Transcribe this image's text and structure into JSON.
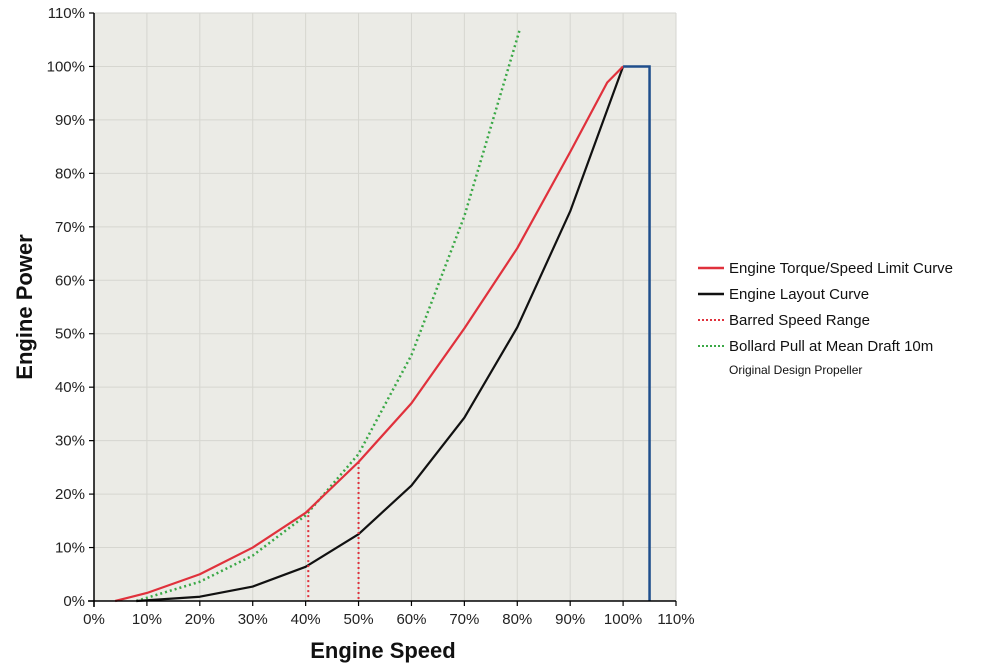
{
  "chart_data": {
    "type": "line",
    "xlabel": "Engine Speed",
    "ylabel": "Engine Power",
    "xlim": [
      0,
      110
    ],
    "ylim": [
      0,
      110
    ],
    "x_ticks": [
      "0%",
      "10%",
      "20%",
      "30%",
      "40%",
      "50%",
      "60%",
      "70%",
      "80%",
      "90%",
      "100%",
      "110%"
    ],
    "y_ticks": [
      "0%",
      "10%",
      "20%",
      "30%",
      "40%",
      "50%",
      "60%",
      "70%",
      "80%",
      "90%",
      "100%",
      "110%"
    ],
    "grid": true,
    "legend_position": "right",
    "colors": {
      "torque_limit": "#e0313c",
      "layout": "#111111",
      "barred": "#e0313c",
      "bollard": "#3aa846",
      "overspeed": "#1f4e8c",
      "plot_bg": "#ebebe6",
      "grid": "#d6d6d0"
    },
    "series": [
      {
        "name": "Engine Torque/Speed Limit Curve",
        "x": [
          4,
          10,
          20,
          30,
          40,
          50,
          60,
          70,
          80,
          90,
          97,
          100
        ],
        "y": [
          0,
          1.5,
          5,
          10,
          16.5,
          26,
          37,
          51,
          66,
          84,
          97,
          100
        ]
      },
      {
        "name": "Engine Layout Curve",
        "x": [
          8,
          20,
          30,
          40,
          50,
          60,
          70,
          80,
          90,
          100
        ],
        "y": [
          0,
          0.8,
          2.7,
          6.4,
          12.5,
          21.6,
          34.3,
          51.2,
          72.9,
          100
        ]
      },
      {
        "name": "Barred Speed Range",
        "x": [
          40.5,
          50
        ],
        "y": [
          17,
          26
        ]
      },
      {
        "name": "Bollard Pull at Mean Draft 10m",
        "x": [
          8,
          20,
          30,
          40,
          50,
          60,
          70,
          80.5
        ],
        "y": [
          0,
          3.6,
          8.5,
          16,
          27.5,
          46,
          72,
          107
        ]
      },
      {
        "x": [
          100,
          105,
          105
        ],
        "y": [
          100,
          100,
          0
        ]
      }
    ],
    "legend": [
      {
        "label": "Engine Torque/Speed Limit Curve",
        "style": "solid",
        "color_key": "torque_limit"
      },
      {
        "label": "Engine Layout Curve",
        "style": "solid",
        "color_key": "layout"
      },
      {
        "label": "Barred Speed Range",
        "style": "dotted",
        "color_key": "barred"
      },
      {
        "label": "Bollard Pull at Mean Draft 10m",
        "style": "dotted",
        "color_key": "bollard"
      }
    ],
    "legend_note": "Original Design Propeller"
  }
}
